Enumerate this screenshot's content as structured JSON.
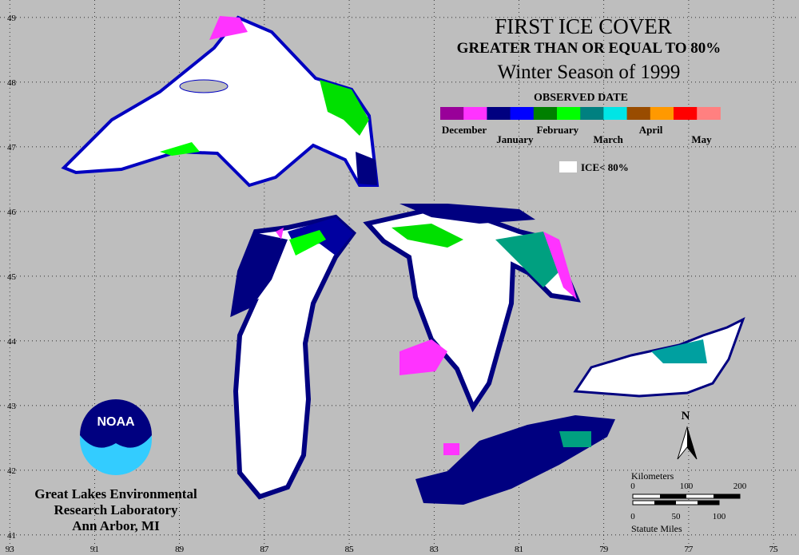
{
  "title": "FIRST ICE COVER",
  "subtitle": "GREATER THAN OR EQUAL TO 80%",
  "season": "Winter Season of 1999",
  "legend": {
    "title": "OBSERVED DATE",
    "months": [
      {
        "label": "December",
        "colors": [
          "#990099",
          "#ff33ff"
        ]
      },
      {
        "label": "January",
        "colors": [
          "#000080",
          "#0000ff"
        ]
      },
      {
        "label": "February",
        "colors": [
          "#008000",
          "#00ff00"
        ]
      },
      {
        "label": "March",
        "colors": [
          "#008080",
          "#00e5e5"
        ]
      },
      {
        "label": "April",
        "colors": [
          "#994c00",
          "#ff9900"
        ]
      },
      {
        "label": "May",
        "colors": [
          "#ff0000",
          "#ff8080"
        ]
      }
    ],
    "no_ice_label": "ICE< 80%"
  },
  "grid": {
    "xlim": [
      93.23,
      74.4
    ],
    "xticks": [
      93,
      91,
      89,
      87,
      85,
      83,
      81,
      79,
      77,
      75
    ],
    "ylim": [
      40.69,
      49.27
    ],
    "yticks": [
      49,
      48,
      47,
      46,
      45,
      44,
      43,
      42,
      41
    ]
  },
  "north": "N",
  "scale": {
    "km_label": "Kilometers",
    "km_ticks": [
      0,
      100,
      200
    ],
    "mi_ticks": [
      0,
      50,
      100
    ],
    "mi_label": "Statute Miles"
  },
  "logo": "NOAA",
  "lab": [
    "Great Lakes Environmental",
    "Research Laboratory",
    "Ann Arbor, MI"
  ]
}
